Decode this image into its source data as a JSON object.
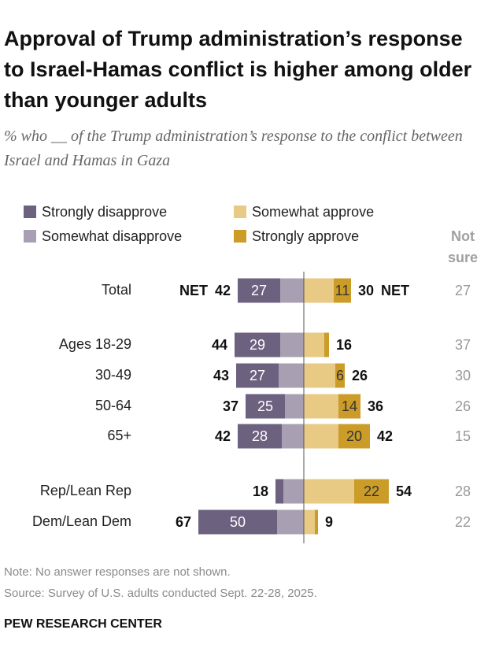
{
  "chart_data": {
    "type": "diverging-bar",
    "title": "Approval of Trump administration’s response to Israel-Hamas conflict is higher among older than younger adults",
    "subtitle": "% who __ of the Trump administration’s response to the conflict between Israel and Hamas in Gaza",
    "categories": [
      "Total",
      "Ages 18-29",
      "30-49",
      "50-64",
      "65+",
      "Rep/Lean Rep",
      "Dem/Lean Dem"
    ],
    "series": [
      {
        "name": "Strongly disapprove",
        "color": "#6d6180",
        "values": [
          27,
          29,
          27,
          25,
          28,
          5,
          50
        ]
      },
      {
        "name": "Somewhat disapprove",
        "color": "#a8a0b2",
        "values": [
          15,
          15,
          16,
          12,
          14,
          13,
          17
        ]
      },
      {
        "name": "Somewhat approve",
        "color": "#e8ca84",
        "values": [
          19,
          13,
          20,
          22,
          22,
          32,
          7
        ]
      },
      {
        "name": "Strongly approve",
        "color": "#cc9c29",
        "values": [
          11,
          3,
          6,
          14,
          20,
          22,
          2
        ]
      }
    ],
    "net_disapprove": [
      42,
      44,
      43,
      37,
      42,
      18,
      67
    ],
    "net_approve": [
      30,
      16,
      26,
      36,
      42,
      54,
      9
    ],
    "net_label": "NET",
    "not_sure_label": "Not sure",
    "not_sure": [
      27,
      37,
      30,
      26,
      15,
      28,
      22
    ],
    "note": "Note: No answer responses are not shown.",
    "source": "Source: Survey of U.S. adults conducted Sept. 22-28, 2025.",
    "credit": "PEW RESEARCH CENTER"
  }
}
